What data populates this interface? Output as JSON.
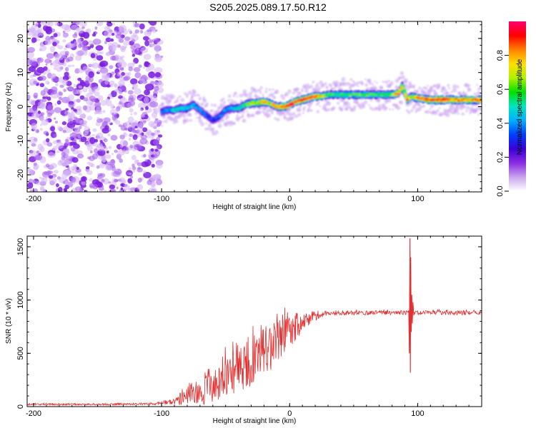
{
  "title": "S205.2025.089.17.50.R12",
  "chart_data": [
    {
      "type": "heatmap",
      "name": "spectrogram",
      "xlabel": "Height of straight line (km)",
      "ylabel": "Frequency (Hz)",
      "xlim": [
        -205,
        150
      ],
      "ylim": [
        -25,
        25
      ],
      "xticks": [
        -200,
        -100,
        0,
        100
      ],
      "yticks": [
        -20,
        -10,
        0,
        10,
        20
      ],
      "colorbar": {
        "label": "Normalized spectral amplitude",
        "range": [
          0,
          1
        ],
        "ticks": [
          "0.0",
          "0.2",
          "0.4",
          "0.6",
          "0.8"
        ],
        "tick_values": [
          0.0,
          0.2,
          0.4,
          0.6,
          0.8
        ],
        "colormap": [
          "#ffffff",
          "#c9a3ee",
          "#8a2be2",
          "#3a00d8",
          "#0040ff",
          "#00b0ff",
          "#00e5c0",
          "#00e000",
          "#b0f000",
          "#ffe000",
          "#ff8000",
          "#ff0000",
          "#ff0070"
        ]
      },
      "noise_region_x": [
        -205,
        -100
      ],
      "ridge": {
        "x": [
          -100,
          -95,
          -90,
          -85,
          -80,
          -75,
          -70,
          -65,
          -60,
          -55,
          -50,
          -45,
          -40,
          -35,
          -30,
          -25,
          -20,
          -15,
          -10,
          -5,
          0,
          5,
          10,
          15,
          20,
          25,
          30,
          40,
          50,
          60,
          70,
          80,
          85,
          88,
          90,
          92,
          95,
          100,
          110,
          120,
          130,
          140,
          150
        ],
        "y": [
          -1.5,
          -1.0,
          -1.0,
          -0.5,
          -0.5,
          0.5,
          -1.0,
          -2.5,
          -4.0,
          -3.0,
          -1.0,
          -0.5,
          -0.5,
          0.5,
          1.0,
          1.0,
          1.5,
          1.0,
          0.0,
          0.0,
          0.5,
          1.5,
          2.0,
          2.5,
          3.0,
          3.0,
          3.5,
          3.5,
          3.5,
          3.5,
          3.5,
          3.5,
          4.0,
          6.0,
          4.0,
          2.0,
          3.0,
          2.5,
          2.0,
          2.0,
          2.0,
          2.0,
          2.0
        ],
        "amplitude": [
          0.35,
          0.4,
          0.45,
          0.5,
          0.45,
          0.45,
          0.4,
          0.35,
          0.3,
          0.35,
          0.4,
          0.45,
          0.5,
          0.55,
          0.7,
          0.65,
          0.8,
          0.7,
          0.75,
          0.85,
          0.95,
          0.9,
          0.9,
          0.9,
          0.85,
          0.7,
          0.55,
          0.55,
          0.6,
          0.6,
          0.55,
          0.6,
          0.85,
          0.7,
          0.6,
          0.85,
          0.6,
          0.8,
          0.9,
          0.9,
          0.8,
          0.8,
          0.85
        ]
      }
    },
    {
      "type": "line",
      "name": "snr",
      "xlabel": "Height of straight line (km)",
      "ylabel": "SNR (10 * v/v)",
      "xlim": [
        -205,
        150
      ],
      "ylim": [
        0,
        1600
      ],
      "xticks": [
        -200,
        -100,
        0,
        100
      ],
      "yticks": [
        0,
        500,
        1000,
        1500
      ],
      "color": "#e32f2f",
      "envelope": {
        "x": [
          -205,
          -150,
          -110,
          -100,
          -95,
          -90,
          -85,
          -80,
          -75,
          -70,
          -65,
          -60,
          -55,
          -50,
          -45,
          -40,
          -35,
          -30,
          -25,
          -20,
          -15,
          -10,
          -5,
          0,
          5,
          10,
          15,
          20,
          25,
          30,
          40,
          60,
          80,
          90,
          150
        ],
        "mean": [
          20,
          20,
          25,
          30,
          40,
          50,
          70,
          90,
          110,
          130,
          160,
          190,
          230,
          270,
          310,
          340,
          380,
          420,
          460,
          500,
          560,
          600,
          650,
          700,
          740,
          780,
          810,
          840,
          860,
          870,
          880,
          880,
          880,
          880,
          880
        ],
        "jitter": [
          8,
          8,
          10,
          15,
          20,
          35,
          60,
          80,
          90,
          110,
          140,
          160,
          170,
          190,
          200,
          220,
          220,
          230,
          220,
          250,
          230,
          200,
          180,
          140,
          120,
          90,
          70,
          40,
          25,
          20,
          20,
          20,
          20,
          20,
          20
        ]
      },
      "spike": {
        "x": [
          93,
          93.5,
          94,
          94.3,
          94.6,
          95,
          95.4,
          95.8,
          96.3,
          97,
          98
        ],
        "y": [
          900,
          500,
          1580,
          320,
          1400,
          700,
          1050,
          780,
          980,
          860,
          880
        ]
      }
    }
  ]
}
